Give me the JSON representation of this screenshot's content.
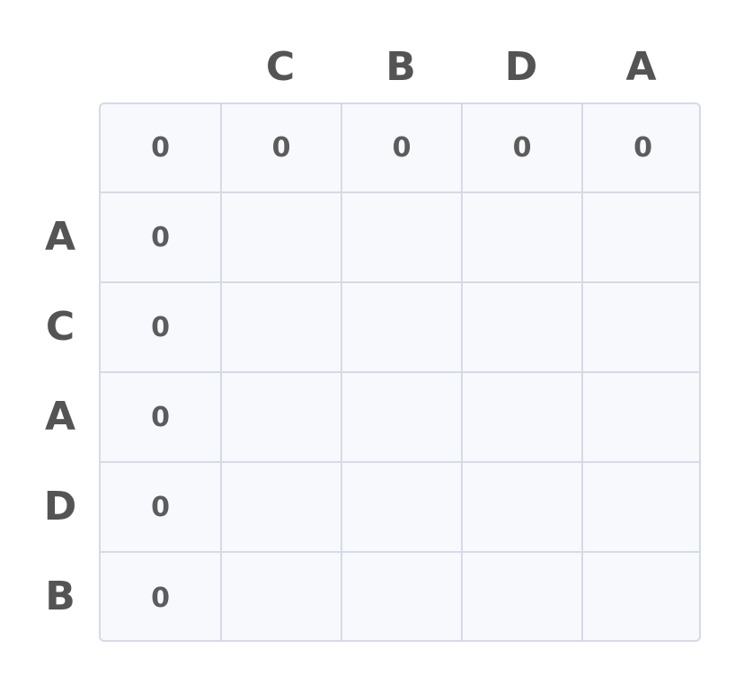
{
  "chart_data": {
    "type": "table",
    "column_headers": [
      "C",
      "B",
      "D",
      "A"
    ],
    "row_headers": [
      "A",
      "C",
      "A",
      "D",
      "B"
    ],
    "cells": [
      [
        "0",
        "0",
        "0",
        "0",
        "0"
      ],
      [
        "0",
        "",
        "",
        "",
        ""
      ],
      [
        "0",
        "",
        "",
        "",
        ""
      ],
      [
        "0",
        "",
        "",
        "",
        ""
      ],
      [
        "0",
        "",
        "",
        "",
        ""
      ],
      [
        "0",
        "",
        "",
        "",
        ""
      ]
    ]
  },
  "colors": {
    "cell_bg": "#f8f9fd",
    "border": "#d5dae6",
    "text": "#5c5c5c"
  }
}
